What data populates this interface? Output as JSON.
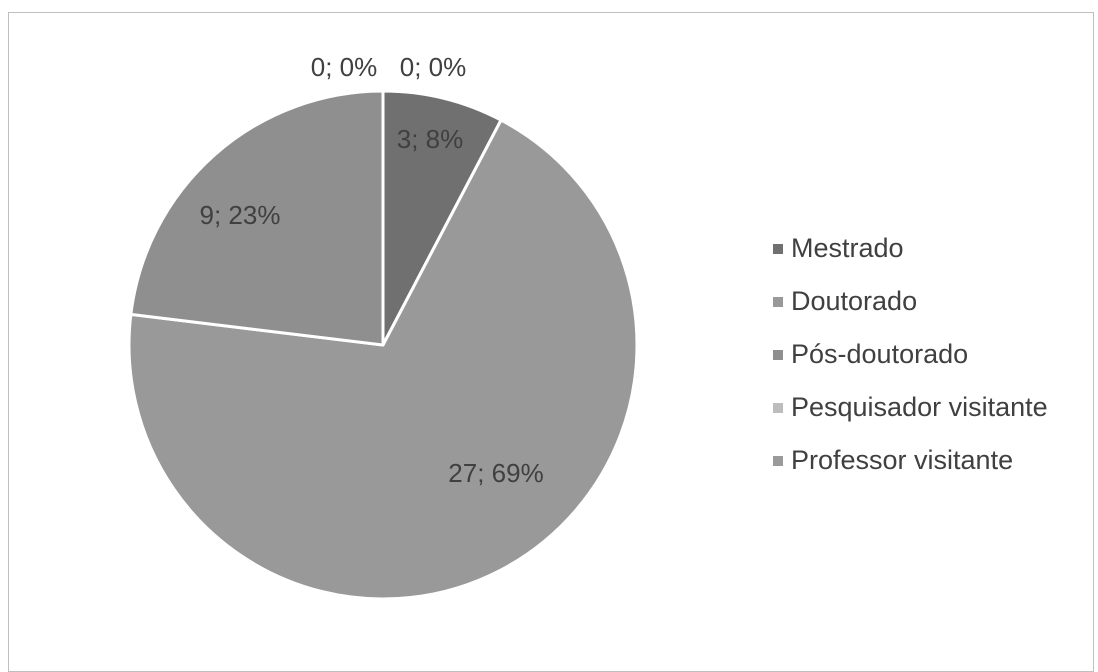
{
  "chart_data": {
    "type": "pie",
    "categories": [
      "Mestrado",
      "Doutorado",
      "Pós-doutorado",
      "Pesquisador visitante",
      "Professor visitante"
    ],
    "values": [
      3,
      27,
      9,
      0,
      0
    ],
    "data_labels": [
      "3; 8%",
      "27; 69%",
      "9; 23%",
      "0; 0%",
      "0; 0%"
    ],
    "colors": [
      "#707070",
      "#999999",
      "#8f8f8f",
      "#bdbdbd",
      "#9a9a9a"
    ],
    "legend_position": "right"
  }
}
